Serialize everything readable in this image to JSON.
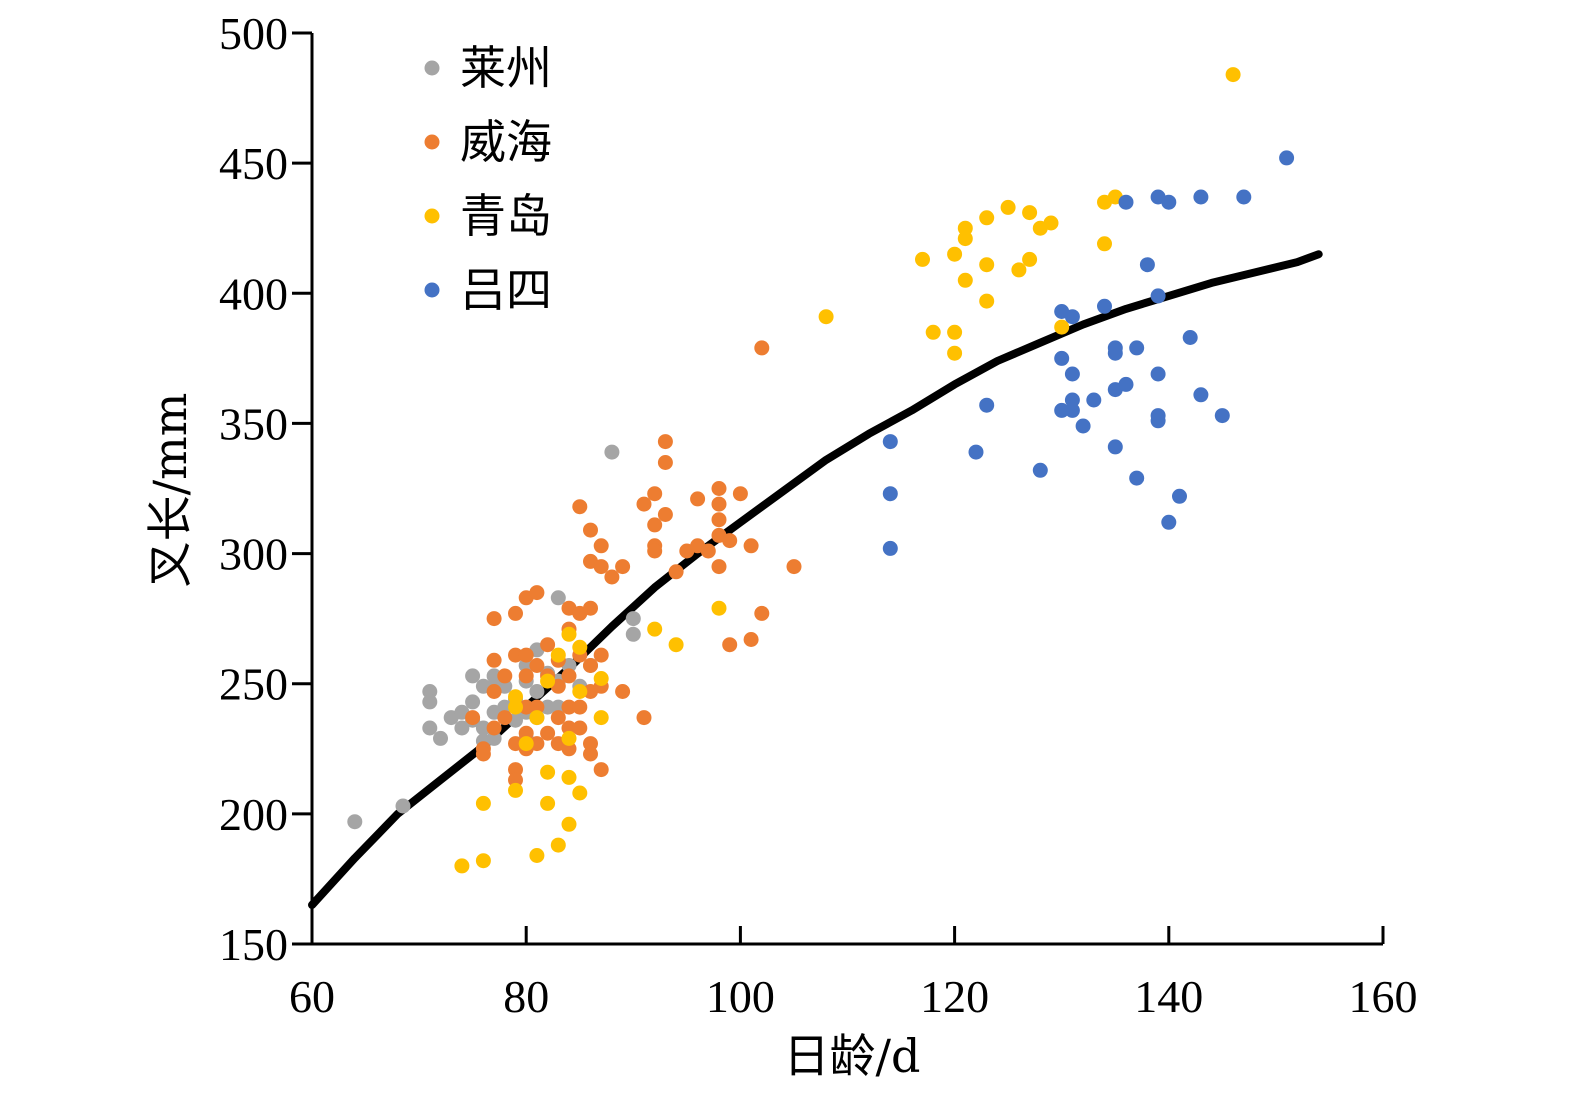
{
  "chart_data": {
    "type": "scatter",
    "xlabel": "日龄/d",
    "ylabel": "叉长/mm",
    "xlim": [
      60,
      160
    ],
    "ylim": [
      150,
      500
    ],
    "xticks": [
      60,
      80,
      100,
      120,
      140,
      160
    ],
    "yticks": [
      150,
      200,
      250,
      300,
      350,
      400,
      450,
      500
    ],
    "grid": false,
    "legend_position": "top-left",
    "series": [
      {
        "name": "莱州",
        "color": "#a5a5a5",
        "points": [
          [
            64,
            197
          ],
          [
            68.5,
            203
          ],
          [
            71,
            247
          ],
          [
            71,
            243
          ],
          [
            71,
            233
          ],
          [
            72,
            229
          ],
          [
            73,
            237
          ],
          [
            74,
            239
          ],
          [
            74,
            233
          ],
          [
            75,
            253
          ],
          [
            75,
            243
          ],
          [
            75,
            236
          ],
          [
            76,
            249
          ],
          [
            76,
            233
          ],
          [
            76,
            228
          ],
          [
            77,
            253
          ],
          [
            77,
            249
          ],
          [
            77,
            239
          ],
          [
            77,
            229
          ],
          [
            78,
            249
          ],
          [
            78,
            241
          ],
          [
            79,
            244
          ],
          [
            79,
            236
          ],
          [
            80,
            257
          ],
          [
            80,
            251
          ],
          [
            80,
            239
          ],
          [
            80,
            229
          ],
          [
            81,
            263
          ],
          [
            81,
            247
          ],
          [
            81,
            237
          ],
          [
            82,
            254
          ],
          [
            82,
            241
          ],
          [
            83,
            283
          ],
          [
            83,
            251
          ],
          [
            83,
            241
          ],
          [
            84,
            257
          ],
          [
            85,
            249
          ],
          [
            86,
            257
          ],
          [
            88,
            339
          ],
          [
            90,
            275
          ],
          [
            90,
            269
          ]
        ]
      },
      {
        "name": "威海",
        "color": "#ed7d31",
        "points": [
          [
            75,
            237
          ],
          [
            76,
            225
          ],
          [
            76,
            223
          ],
          [
            77,
            275
          ],
          [
            77,
            259
          ],
          [
            77,
            247
          ],
          [
            77,
            233
          ],
          [
            78,
            253
          ],
          [
            78,
            237
          ],
          [
            79,
            277
          ],
          [
            79,
            261
          ],
          [
            79,
            227
          ],
          [
            79,
            217
          ],
          [
            79,
            213
          ],
          [
            80,
            283
          ],
          [
            80,
            261
          ],
          [
            80,
            253
          ],
          [
            80,
            241
          ],
          [
            80,
            231
          ],
          [
            80,
            225
          ],
          [
            81,
            285
          ],
          [
            81,
            257
          ],
          [
            81,
            241
          ],
          [
            81,
            227
          ],
          [
            82,
            265
          ],
          [
            82,
            253
          ],
          [
            82,
            231
          ],
          [
            83,
            259
          ],
          [
            83,
            249
          ],
          [
            83,
            237
          ],
          [
            83,
            227
          ],
          [
            84,
            279
          ],
          [
            84,
            271
          ],
          [
            84,
            253
          ],
          [
            84,
            241
          ],
          [
            84,
            233
          ],
          [
            84,
            225
          ],
          [
            85,
            277
          ],
          [
            85,
            261
          ],
          [
            85,
            241
          ],
          [
            85,
            233
          ],
          [
            85,
            318
          ],
          [
            86,
            309
          ],
          [
            86,
            297
          ],
          [
            86,
            279
          ],
          [
            86,
            257
          ],
          [
            86,
            247
          ],
          [
            86,
            223
          ],
          [
            86,
            227
          ],
          [
            87,
            303
          ],
          [
            87,
            295
          ],
          [
            87,
            261
          ],
          [
            87,
            249
          ],
          [
            87,
            217
          ],
          [
            88,
            291
          ],
          [
            89,
            295
          ],
          [
            89,
            247
          ],
          [
            91,
            319
          ],
          [
            91,
            237
          ],
          [
            92,
            323
          ],
          [
            92,
            311
          ],
          [
            92,
            303
          ],
          [
            92,
            301
          ],
          [
            93,
            343
          ],
          [
            93,
            335
          ],
          [
            93,
            315
          ],
          [
            94,
            293
          ],
          [
            95,
            301
          ],
          [
            96,
            321
          ],
          [
            96,
            303
          ],
          [
            97,
            301
          ],
          [
            98,
            325
          ],
          [
            98,
            319
          ],
          [
            98,
            313
          ],
          [
            98,
            307
          ],
          [
            98,
            295
          ],
          [
            99,
            305
          ],
          [
            99,
            265
          ],
          [
            100,
            323
          ],
          [
            101,
            303
          ],
          [
            101,
            267
          ],
          [
            102,
            379
          ],
          [
            102,
            277
          ],
          [
            105,
            295
          ]
        ]
      },
      {
        "name": "青岛",
        "color": "#ffc000",
        "points": [
          [
            74,
            180
          ],
          [
            76,
            182
          ],
          [
            76,
            204
          ],
          [
            79,
            241
          ],
          [
            79,
            209
          ],
          [
            79,
            245
          ],
          [
            80,
            227
          ],
          [
            81,
            184
          ],
          [
            81,
            237
          ],
          [
            82,
            204
          ],
          [
            82,
            216
          ],
          [
            82,
            251
          ],
          [
            83,
            188
          ],
          [
            83,
            261
          ],
          [
            84,
            196
          ],
          [
            84,
            214
          ],
          [
            84,
            229
          ],
          [
            84,
            269
          ],
          [
            85,
            208
          ],
          [
            85,
            247
          ],
          [
            85,
            264
          ],
          [
            87,
            237
          ],
          [
            87,
            252
          ],
          [
            92,
            271
          ],
          [
            94,
            265
          ],
          [
            98,
            279
          ],
          [
            108,
            391
          ],
          [
            117,
            413
          ],
          [
            118,
            385
          ],
          [
            120,
            415
          ],
          [
            120,
            385
          ],
          [
            120,
            377
          ],
          [
            121,
            425
          ],
          [
            121,
            421
          ],
          [
            121,
            405
          ],
          [
            123,
            429
          ],
          [
            123,
            411
          ],
          [
            123,
            397
          ],
          [
            125,
            433
          ],
          [
            126,
            409
          ],
          [
            127,
            431
          ],
          [
            127,
            413
          ],
          [
            128,
            425
          ],
          [
            129,
            427
          ],
          [
            130,
            387
          ],
          [
            134,
            435
          ],
          [
            134,
            419
          ],
          [
            135,
            437
          ],
          [
            146,
            484
          ]
        ]
      },
      {
        "name": "吕四",
        "color": "#4472c4",
        "points": [
          [
            114,
            343
          ],
          [
            114,
            323
          ],
          [
            114,
            302
          ],
          [
            122,
            339
          ],
          [
            123,
            357
          ],
          [
            128,
            332
          ],
          [
            130,
            393
          ],
          [
            130,
            375
          ],
          [
            130,
            355
          ],
          [
            131,
            391
          ],
          [
            131,
            369
          ],
          [
            131,
            359
          ],
          [
            131,
            355
          ],
          [
            132,
            349
          ],
          [
            133,
            359
          ],
          [
            134,
            395
          ],
          [
            135,
            379
          ],
          [
            135,
            377
          ],
          [
            135,
            363
          ],
          [
            135,
            341
          ],
          [
            136,
            435
          ],
          [
            136,
            365
          ],
          [
            137,
            379
          ],
          [
            137,
            329
          ],
          [
            138,
            411
          ],
          [
            139,
            437
          ],
          [
            139,
            399
          ],
          [
            139,
            369
          ],
          [
            139,
            353
          ],
          [
            139,
            351
          ],
          [
            140,
            435
          ],
          [
            140,
            312
          ],
          [
            141,
            322
          ],
          [
            142,
            383
          ],
          [
            143,
            437
          ],
          [
            143,
            361
          ],
          [
            145,
            353
          ],
          [
            147,
            437
          ],
          [
            151,
            452
          ]
        ]
      },
      {
        "name": "",
        "type": "line",
        "color": "#000000",
        "points": [
          [
            60,
            165
          ],
          [
            64,
            183
          ],
          [
            68,
            200
          ],
          [
            72,
            213
          ],
          [
            76,
            226
          ],
          [
            80,
            241
          ],
          [
            84,
            256
          ],
          [
            88,
            272
          ],
          [
            92,
            287
          ],
          [
            96,
            300
          ],
          [
            100,
            312
          ],
          [
            104,
            324
          ],
          [
            108,
            336
          ],
          [
            112,
            346
          ],
          [
            116,
            355
          ],
          [
            120,
            365
          ],
          [
            124,
            374
          ],
          [
            128,
            381
          ],
          [
            132,
            388
          ],
          [
            136,
            394
          ],
          [
            140,
            399
          ],
          [
            144,
            404
          ],
          [
            148,
            408
          ],
          [
            152,
            412
          ],
          [
            154,
            415
          ]
        ]
      }
    ]
  }
}
